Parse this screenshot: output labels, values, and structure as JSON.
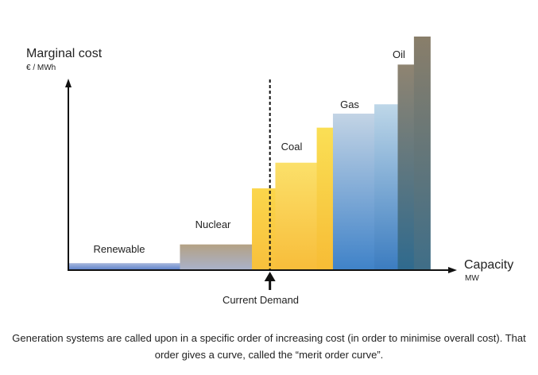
{
  "chart": {
    "y_axis_title": "Marginal cost",
    "y_axis_unit": "€ / MWh",
    "x_axis_title": "Capacity",
    "x_axis_unit": "MW",
    "demand_label": "Current Demand",
    "group_labels": {
      "renewable": "Renewable",
      "nuclear": "Nuclear",
      "coal": "Coal",
      "gas": "Gas",
      "oil": "Oil"
    }
  },
  "chart_data": {
    "type": "bar",
    "title": "",
    "xlabel": "Capacity (MW)",
    "ylabel": "Marginal cost (€ / MWh)",
    "axis_values_shown": false,
    "grid": false,
    "legend": "none",
    "bars": [
      {
        "group": "Renewable",
        "capacity": 0.31,
        "cost": 0.03,
        "colors": [
          "#a9b9dd",
          "#5b7fc9"
        ]
      },
      {
        "group": "Nuclear",
        "capacity": 0.2,
        "cost": 0.11,
        "colors": [
          "#b4a184",
          "#a9b2cc"
        ]
      },
      {
        "group": "Coal",
        "capacity": 0.065,
        "cost": 0.35,
        "colors": [
          "#fbd64b",
          "#f8c03c"
        ]
      },
      {
        "group": "Coal",
        "capacity": 0.115,
        "cost": 0.46,
        "colors": [
          "#fbe06a",
          "#f8bd3a"
        ]
      },
      {
        "group": "Coal",
        "capacity": 0.045,
        "cost": 0.61,
        "colors": [
          "#fadf55",
          "#f7bc35"
        ]
      },
      {
        "group": "Gas",
        "capacity": 0.115,
        "cost": 0.67,
        "colors": [
          "#c3d4e5",
          "#3f82c8"
        ]
      },
      {
        "group": "Gas",
        "capacity": 0.065,
        "cost": 0.71,
        "colors": [
          "#bed7e8",
          "#3b7cc0"
        ]
      },
      {
        "group": "Oil",
        "capacity": 0.045,
        "cost": 0.88,
        "colors": [
          "#8f8471",
          "#2f6a8e"
        ]
      },
      {
        "group": "Oil",
        "capacity": 0.045,
        "cost": 1.0,
        "colors": [
          "#897e6a",
          "#3f6e88"
        ]
      }
    ],
    "current_demand": 0.56
  },
  "caption": "Generation systems are called upon in a specific order of increasing cost (in order to minimise overall cost). That order gives a curve, called the “merit order curve”."
}
